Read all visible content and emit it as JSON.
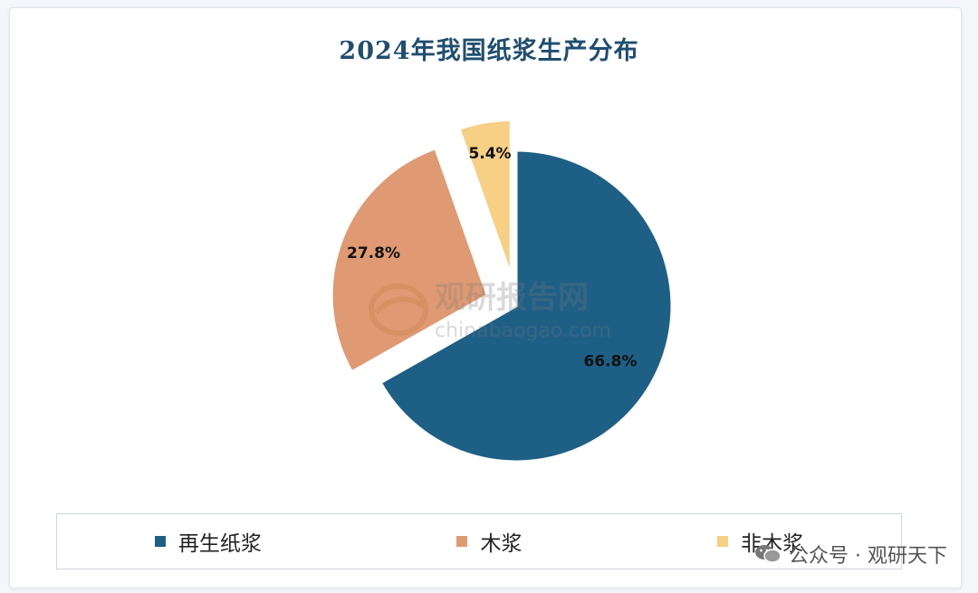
{
  "chart_data": {
    "type": "pie",
    "title": "2024年我国纸浆生产分布",
    "slices": [
      {
        "label": "再生纸浆",
        "value": 66.8,
        "display": "66.8%",
        "color": "#1e5f86",
        "exploded": false
      },
      {
        "label": "木浆",
        "value": 27.8,
        "display": "27.8%",
        "color": "#df9a73",
        "exploded": true
      },
      {
        "label": "非木浆",
        "value": 5.4,
        "display": "5.4%",
        "color": "#f7cf85",
        "exploded": true
      }
    ],
    "start": "12 o'clock, clockwise",
    "legend_position": "bottom"
  },
  "watermark": {
    "brand": "观研报告网",
    "site": "chinabaogao.com"
  },
  "footer": {
    "icon": "wechat-icon",
    "text": "公众号 · 观研天下"
  }
}
